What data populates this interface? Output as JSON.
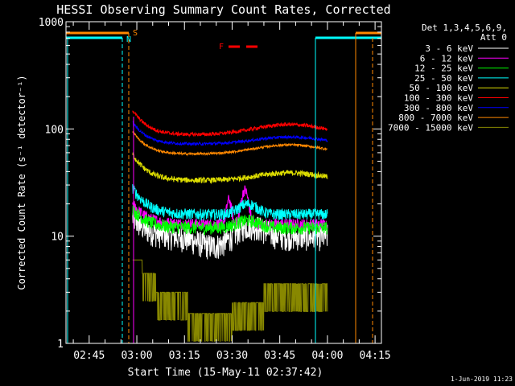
{
  "chart_data": {
    "type": "line",
    "title": "HESSI Observing Summary Count Rates, Corrected",
    "xlabel": "Start Time (15-May-11 02:37:42)",
    "ylabel": "Corrected Count Rate (s⁻¹ detector⁻¹)",
    "yscale": "log",
    "ylim": [
      1,
      1000
    ],
    "xlim": [
      "02:37:42",
      "04:17:00"
    ],
    "x_ticks": [
      "02:45",
      "03:00",
      "03:15",
      "03:30",
      "03:45",
      "04:00",
      "04:15"
    ],
    "y_ticks": [
      "1",
      "10",
      "100",
      "1000"
    ],
    "legend_title": "Det 1,3,4,5,6,9,",
    "legend_subtitle": "Att 0",
    "legend_placement": "right",
    "footer": "1-Jun-2019 11:23",
    "flags": {
      "S": "S",
      "N": "N",
      "F": "F"
    },
    "series": [
      {
        "name": "3 - 6 keV",
        "color": "#ffffff"
      },
      {
        "name": "6 - 12 keV",
        "color": "#ff00ff"
      },
      {
        "name": "12 - 25 keV",
        "color": "#00ff00"
      },
      {
        "name": "25 - 50 keV",
        "color": "#00ffff"
      },
      {
        "name": "50 - 100 keV",
        "color": "#dddd00"
      },
      {
        "name": "100 - 300 keV",
        "color": "#ff0000"
      },
      {
        "name": "300 - 800 keV",
        "color": "#0000ff"
      },
      {
        "name": "800 - 7000 keV",
        "color": "#ff8800"
      },
      {
        "name": "7000 - 15000 keV",
        "color": "#888800"
      }
    ]
  }
}
